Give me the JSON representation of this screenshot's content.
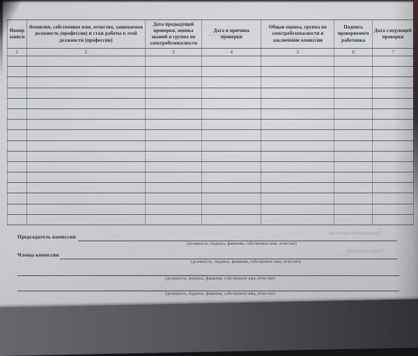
{
  "table": {
    "columns": [
      {
        "number": "1",
        "label": "Номер записи"
      },
      {
        "number": "2",
        "label": "Фамилия, собственное имя, отчество, занимаемая должность (профессия) и стаж работы в этой должности (профессии)"
      },
      {
        "number": "3",
        "label": "Дата предыдущей проверки, оценка знаний и группа по электробезопасности"
      },
      {
        "number": "4",
        "label": "Дата и причина проверки"
      },
      {
        "number": "5",
        "label": "Общая оценка, группа по электробезопасности и заключение комиссии"
      },
      {
        "number": "6",
        "label": "Подпись проверяемого работника"
      },
      {
        "number": "7",
        "label": "Дата следующей проверки"
      }
    ],
    "body_row_count": 16,
    "body_cells_empty": true
  },
  "footer": {
    "rows": [
      {
        "label": "Председатель комиссии",
        "caption": "(должность, подпись, фамилия, собственное имя, отчество)"
      },
      {
        "label": "Члены комиссии",
        "caption": "(должность, подпись, фамилия, собственное имя, отчество)"
      },
      {
        "label": "",
        "caption": "(должность, подпись, фамилия, собственное имя, отчество)"
      },
      {
        "label": "",
        "caption": "(должность, подпись, фамилия, собственное имя, отчество)"
      }
    ]
  },
  "ghost_texts": [
    {
      "text": "Председатель комиссии"
    },
    {
      "text": "Члены комиссии"
    },
    {
      "text": "(должность, подпись, фамилия, собственное имя, отчество)"
    },
    {
      "text": "(должность, подпись, фамилия, собственное имя, отчество)"
    },
    {
      "text": "Дата предыдущей"
    },
    {
      "text": "Дата следующей"
    }
  ],
  "colors": {
    "paper": "#cbccd0",
    "ink": "#2b2b30",
    "table_line": "#3e3f45",
    "cover_edge": "#47252c",
    "shadow_band": "#45464a"
  }
}
